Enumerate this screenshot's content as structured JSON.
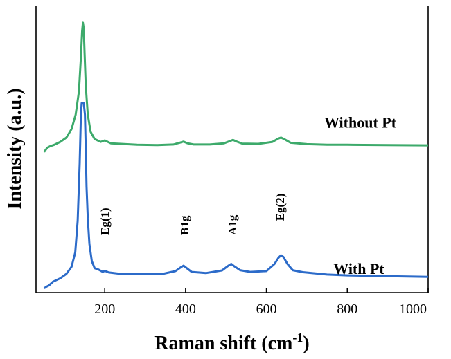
{
  "chart_data": {
    "type": "line",
    "title": "",
    "xlabel": "Raman shift (cm",
    "xlabel_sup": "-1",
    "xlabel_end": ")",
    "ylabel": "Intensity (a.u.)",
    "xlim": [
      30,
      1000
    ],
    "ylim": [
      0,
      1
    ],
    "x_ticks": [
      200,
      400,
      600,
      800,
      1000
    ],
    "x_tick_labels": [
      "200",
      "400",
      "600",
      "800",
      "1000"
    ],
    "y_ticks": [],
    "grid": false,
    "legend": "inline-labels",
    "series": [
      {
        "name": "Without Pt",
        "color": "#3daa6b",
        "x": [
          50,
          58,
          65,
          75,
          90,
          105,
          118,
          128,
          136,
          141,
          144,
          146,
          148,
          150,
          153,
          158,
          165,
          175,
          190,
          200,
          215,
          240,
          280,
          330,
          370,
          385,
          395,
          405,
          420,
          460,
          495,
          510,
          517,
          525,
          540,
          580,
          615,
          630,
          636,
          645,
          660,
          700,
          750,
          800,
          900,
          1000
        ],
        "y": [
          0.49,
          0.505,
          0.51,
          0.515,
          0.525,
          0.54,
          0.57,
          0.62,
          0.7,
          0.82,
          0.91,
          0.94,
          0.92,
          0.84,
          0.72,
          0.62,
          0.56,
          0.535,
          0.525,
          0.53,
          0.52,
          0.518,
          0.515,
          0.514,
          0.516,
          0.522,
          0.526,
          0.52,
          0.516,
          0.516,
          0.52,
          0.528,
          0.532,
          0.527,
          0.519,
          0.518,
          0.525,
          0.537,
          0.54,
          0.534,
          0.522,
          0.517,
          0.515,
          0.515,
          0.514,
          0.513
        ],
        "label": "Without Pt"
      },
      {
        "name": "With Pt",
        "color": "#2c6bc9",
        "x": [
          50,
          55,
          62,
          72,
          90,
          105,
          118,
          127,
          133,
          138,
          141,
          143,
          145,
          148,
          151,
          153,
          155,
          158,
          162,
          168,
          175,
          185,
          195,
          200,
          210,
          240,
          280,
          340,
          375,
          388,
          395,
          402,
          415,
          450,
          490,
          505,
          513,
          520,
          535,
          560,
          600,
          620,
          630,
          636,
          642,
          652,
          665,
          690,
          750,
          800,
          900,
          1000
        ],
        "y": [
          0.015,
          0.02,
          0.025,
          0.038,
          0.05,
          0.065,
          0.09,
          0.14,
          0.25,
          0.45,
          0.62,
          0.66,
          0.66,
          0.66,
          0.62,
          0.5,
          0.37,
          0.26,
          0.17,
          0.11,
          0.085,
          0.08,
          0.072,
          0.076,
          0.07,
          0.065,
          0.064,
          0.064,
          0.075,
          0.088,
          0.094,
          0.086,
          0.072,
          0.068,
          0.077,
          0.093,
          0.1,
          0.092,
          0.078,
          0.072,
          0.075,
          0.1,
          0.122,
          0.13,
          0.124,
          0.1,
          0.078,
          0.071,
          0.063,
          0.06,
          0.057,
          0.055
        ],
        "label": "With Pt"
      }
    ],
    "annotations": [
      {
        "text": "Eg(1)",
        "x": 200,
        "y": 0.2,
        "rotation": -90
      },
      {
        "text": "B1g",
        "x": 397,
        "y": 0.2,
        "rotation": -90
      },
      {
        "text": "A1g",
        "x": 515,
        "y": 0.2,
        "rotation": -90
      },
      {
        "text": "Eg(2)",
        "x": 633,
        "y": 0.25,
        "rotation": -90
      }
    ]
  }
}
